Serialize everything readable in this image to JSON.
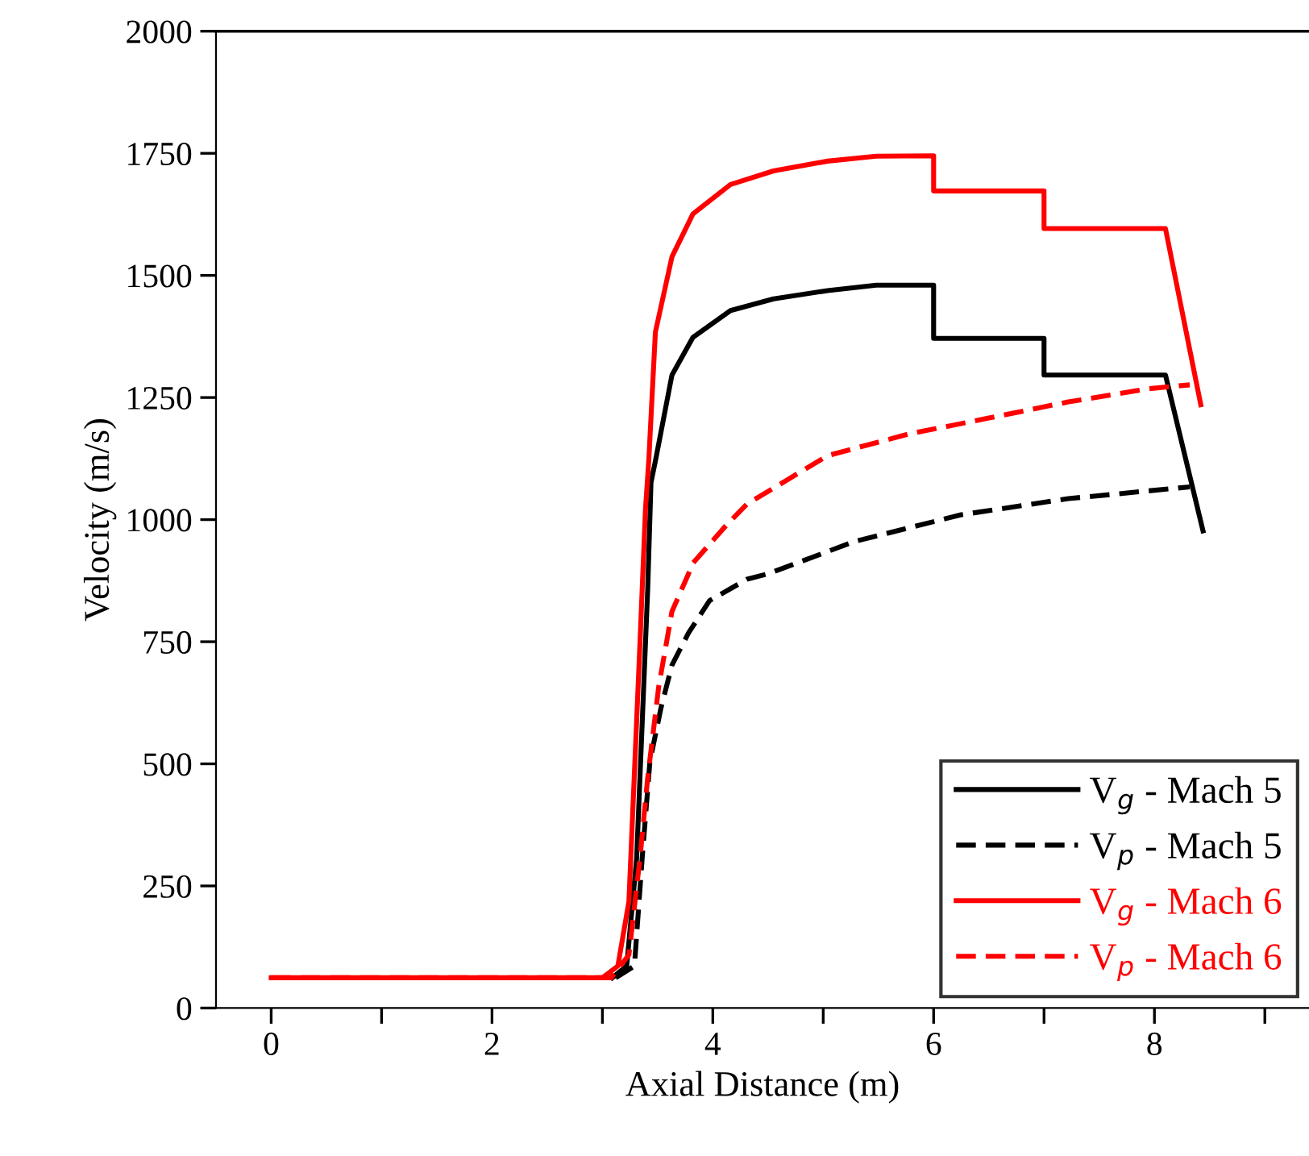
{
  "chart_data": {
    "type": "line",
    "xlabel": "Axial Distance (m)",
    "ylabel": "Velocity (m/s)",
    "xlim": [
      -0.5,
      9.4
    ],
    "xticks": [
      0,
      {
        "value": 1,
        "label": null
      },
      2,
      {
        "value": 3,
        "label": null
      },
      4,
      {
        "value": 5,
        "label": null
      },
      6,
      {
        "value": 7,
        "label": null
      },
      8,
      {
        "value": 9,
        "label": null
      }
    ],
    "ylim": [
      0,
      2000
    ],
    "yticks": [
      0,
      250,
      500,
      750,
      1000,
      1250,
      1500,
      1750,
      2000
    ],
    "grid": false,
    "legend": "bottom right",
    "marker": "none",
    "series": [
      {
        "name": "V$_{g}$ - Mach 5",
        "color": "#000000",
        "line_style": "solid",
        "x": [
          3.09,
          3.22,
          3.31,
          3.36,
          3.41,
          3.44,
          3.48,
          3.63,
          3.82,
          4.16,
          4.55,
          5.04,
          5.48,
          6.0,
          6.0,
          7.0,
          7.0,
          8.1,
          8.44
        ],
        "values": [
          62,
          86,
          306,
          581,
          856,
          1076,
          1120,
          1296,
          1373,
          1428,
          1452,
          1469,
          1480,
          1480,
          1371,
          1371,
          1296,
          1296,
          977
        ]
      },
      {
        "name": "V$_{p}$ - Mach 5",
        "color": "#000000",
        "line_style": "dashed",
        "x": [
          3.12,
          3.29,
          3.36,
          3.43,
          3.53,
          3.63,
          3.78,
          3.97,
          4.31,
          4.5,
          5.28,
          6.25,
          7.22,
          8.32
        ],
        "values": [
          62,
          86,
          306,
          504,
          614,
          702,
          768,
          834,
          878,
          889,
          955,
          1010,
          1043,
          1067
        ]
      },
      {
        "name": "V$_{g}$ - Mach 6",
        "color": "#ff0000",
        "line_style": "solid",
        "x": [
          0,
          3.0,
          3.14,
          3.24,
          3.29,
          3.34,
          3.39,
          3.42,
          3.48,
          3.63,
          3.82,
          4.16,
          4.55,
          5.04,
          5.48,
          6.0,
          6.0,
          7.0,
          7.0,
          8.1,
          8.42
        ],
        "values": [
          62,
          62,
          86,
          218,
          482,
          746,
          1021,
          1121,
          1384,
          1538,
          1626,
          1686,
          1714,
          1734,
          1744,
          1745,
          1673,
          1673,
          1596,
          1596,
          1235
        ]
      },
      {
        "name": "V$_{p}$ - Mach 6",
        "color": "#ff0000",
        "line_style": "dashed",
        "x": [
          0,
          3.08,
          3.24,
          3.34,
          3.41,
          3.51,
          3.63,
          3.78,
          3.82,
          4.12,
          4.31,
          5.04,
          5.77,
          6.5,
          7.22,
          7.95,
          8.32
        ],
        "values": [
          62,
          62,
          109,
          306,
          471,
          658,
          812,
          889,
          911,
          988,
          1032,
          1131,
          1175,
          1208,
          1241,
          1268,
          1276
        ]
      }
    ]
  }
}
